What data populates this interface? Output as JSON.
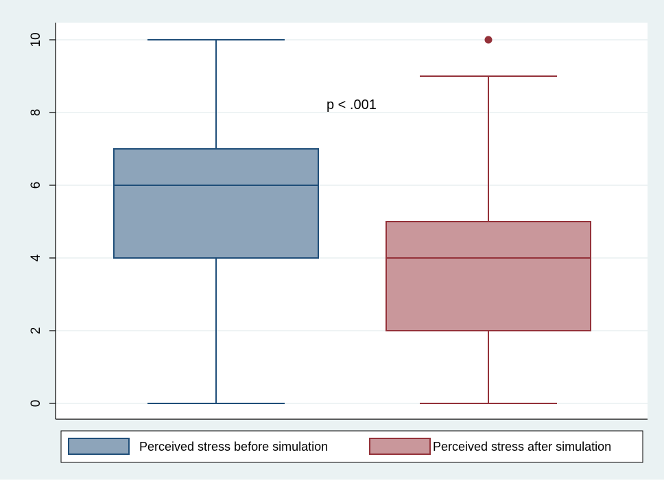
{
  "chart_data": {
    "type": "box",
    "annotation": "p < .001",
    "ylim": [
      0,
      10
    ],
    "yticks": [
      0,
      2,
      4,
      6,
      8,
      10
    ],
    "grid": true,
    "legend_position": "bottom",
    "series": [
      {
        "name": "Perceived stress before simulation",
        "min": 0,
        "q1": 4,
        "median": 6,
        "q3": 7,
        "max": 10,
        "outliers": [],
        "fill": "#8da4ba",
        "stroke": "#1f4e79"
      },
      {
        "name": "Perceived stress after simulation",
        "min": 0,
        "q1": 2,
        "median": 4,
        "q3": 5,
        "max": 9,
        "outliers": [
          10
        ],
        "fill": "#c9979b",
        "stroke": "#943139"
      }
    ]
  }
}
